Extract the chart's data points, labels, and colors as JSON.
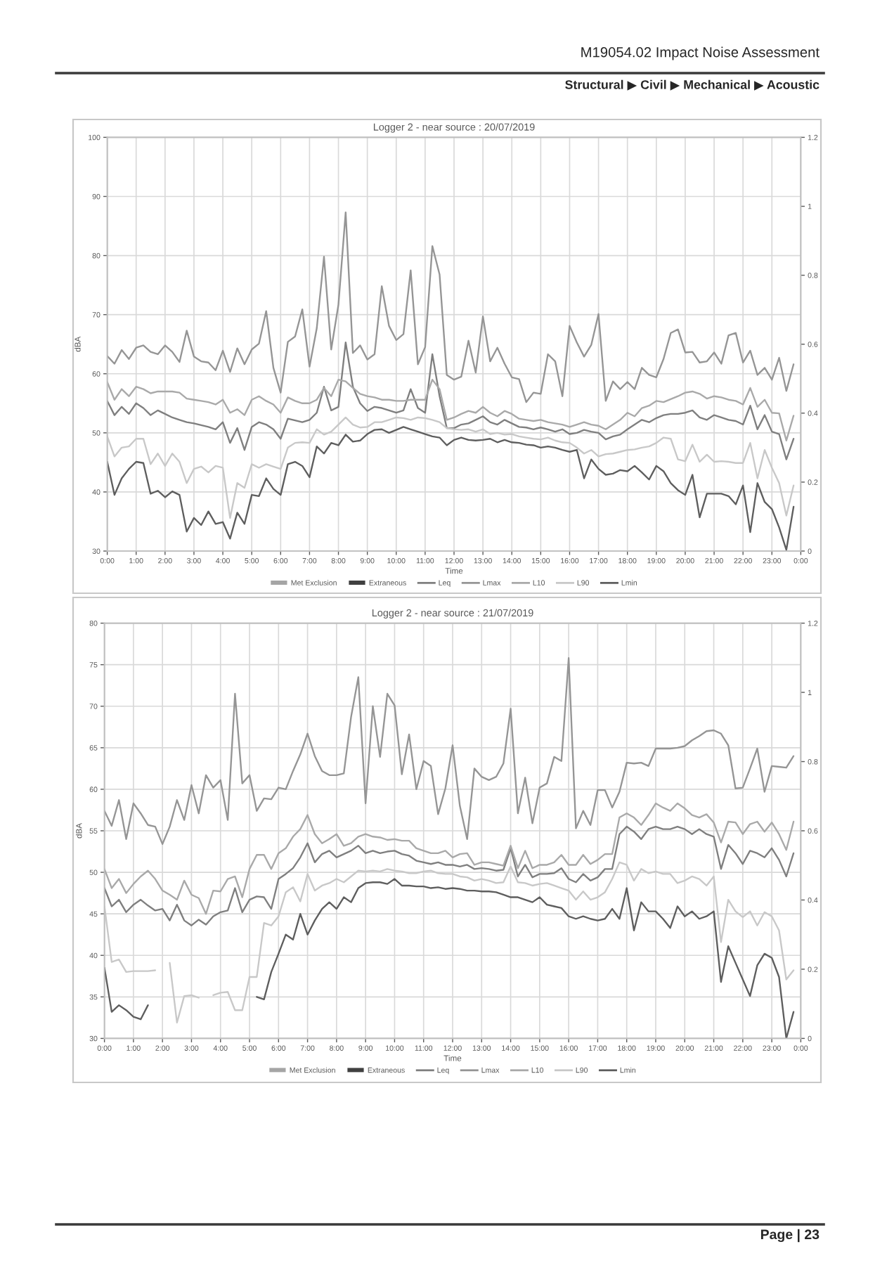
{
  "chart_data": [
    {
      "type": "line",
      "title": "Logger 2 - near source : 20/07/2019",
      "xlabel": "Time",
      "ylabel": "dBA",
      "legend": "bottom",
      "grid": true,
      "x": [
        0,
        0.25,
        0.5,
        0.75,
        1,
        1.25,
        1.5,
        1.75,
        2,
        2.25,
        2.5,
        2.75,
        3,
        3.25,
        3.5,
        3.75,
        4,
        4.25,
        4.5,
        4.75,
        5,
        5.25,
        5.5,
        5.75,
        6,
        6.25,
        6.5,
        6.75,
        7,
        7.25,
        7.5,
        7.75,
        8,
        8.25,
        8.5,
        8.75,
        9,
        9.25,
        9.5,
        9.75,
        10,
        10.25,
        10.5,
        10.75,
        11,
        11.25,
        11.5,
        11.75,
        12,
        12.25,
        12.5,
        12.75,
        13,
        13.25,
        13.5,
        13.75,
        14,
        14.25,
        14.5,
        14.75,
        15,
        15.25,
        15.5,
        15.75,
        16,
        16.25,
        16.5,
        16.75,
        17,
        17.25,
        17.5,
        17.75,
        18,
        18.25,
        18.5,
        18.75,
        19,
        19.25,
        19.5,
        19.75,
        20,
        20.25,
        20.5,
        20.75,
        21,
        21.25,
        21.5,
        21.75,
        22,
        22.25,
        22.5,
        22.75,
        23,
        23.25,
        23.5,
        23.75
      ],
      "xlim": [
        0,
        24
      ],
      "xticks": [
        {
          "value": 0,
          "label": "0:00"
        },
        {
          "value": 1,
          "label": "1:00"
        },
        {
          "value": 2,
          "label": "2:00"
        },
        {
          "value": 3,
          "label": "3:00"
        },
        {
          "value": 4,
          "label": "4:00"
        },
        {
          "value": 5,
          "label": "5:00"
        },
        {
          "value": 6,
          "label": "6:00"
        },
        {
          "value": 7,
          "label": "7:00"
        },
        {
          "value": 8,
          "label": "8:00"
        },
        {
          "value": 9,
          "label": "9:00"
        },
        {
          "value": 10,
          "label": "10:00"
        },
        {
          "value": 11,
          "label": "11:00"
        },
        {
          "value": 12,
          "label": "12:00"
        },
        {
          "value": 13,
          "label": "13:00"
        },
        {
          "value": 14,
          "label": "14:00"
        },
        {
          "value": 15,
          "label": "15:00"
        },
        {
          "value": 16,
          "label": "16:00"
        },
        {
          "value": 17,
          "label": "17:00"
        },
        {
          "value": 18,
          "label": "18:00"
        },
        {
          "value": 19,
          "label": "19:00"
        },
        {
          "value": 20,
          "label": "20:00"
        },
        {
          "value": 21,
          "label": "21:00"
        },
        {
          "value": 22,
          "label": "22:00"
        },
        {
          "value": 23,
          "label": "23:00"
        },
        {
          "value": 24,
          "label": "0:00"
        }
      ],
      "ylim": [
        30,
        100
      ],
      "yticks": [
        30,
        40,
        50,
        60,
        70,
        80,
        90,
        100
      ],
      "y2lim": [
        0,
        1.2
      ],
      "y2ticks": [
        0,
        0.2,
        0.4,
        0.6,
        0.8,
        1,
        1.2
      ],
      "series": [
        {
          "name": "Met Exclusion",
          "type": "bar",
          "color": "#a5a5a5",
          "values": [
            null,
            null,
            null,
            null,
            null,
            null,
            null,
            null,
            null,
            null,
            null,
            null,
            null,
            null,
            null,
            null,
            null,
            null,
            null,
            null,
            null,
            null,
            null,
            null,
            null,
            null,
            null,
            null,
            null,
            null,
            null,
            null,
            null,
            null,
            null,
            null,
            null,
            null,
            null,
            null,
            null,
            null,
            null,
            null,
            null,
            null,
            null,
            null,
            null,
            null,
            null,
            null,
            null,
            null,
            null,
            null,
            null,
            null,
            null,
            null,
            null,
            null,
            null,
            null,
            null,
            null,
            null,
            null,
            null,
            null,
            null,
            null,
            null,
            null,
            null,
            null,
            null,
            null,
            null,
            null,
            null,
            null,
            null,
            null,
            null,
            null,
            null,
            null,
            null,
            null,
            null,
            null,
            null,
            null,
            null,
            null
          ]
        },
        {
          "name": "Extraneous",
          "type": "bar",
          "color": "#404040",
          "values": [
            null,
            null,
            null,
            null,
            null,
            null,
            null,
            null,
            null,
            null,
            null,
            null,
            null,
            null,
            null,
            null,
            null,
            null,
            null,
            null,
            null,
            null,
            null,
            null,
            null,
            null,
            null,
            null,
            null,
            null,
            null,
            null,
            null,
            null,
            null,
            null,
            null,
            null,
            null,
            null,
            null,
            null,
            null,
            null,
            null,
            null,
            null,
            null,
            null,
            null,
            null,
            null,
            null,
            null,
            null,
            null,
            null,
            null,
            null,
            null,
            null,
            null,
            null,
            null,
            null,
            null,
            null,
            null,
            null,
            null,
            null,
            null,
            null,
            null,
            null,
            null,
            null,
            null,
            null,
            null,
            null,
            null,
            null,
            null,
            null,
            null,
            null,
            null,
            null,
            null,
            null,
            null,
            null,
            null,
            null,
            null
          ]
        },
        {
          "name": "Leq",
          "color": "#7f7f7f",
          "values": [
            55.4,
            53.0,
            54.4,
            53.2,
            55.0,
            54.2,
            53.0,
            53.8,
            53.2,
            52.6,
            52.2,
            51.8,
            51.6,
            51.3,
            51.0,
            50.6,
            51.8,
            48.3,
            50.8,
            47.1,
            51.0,
            51.8,
            51.4,
            50.6,
            49.0,
            52.4,
            52.1,
            51.8,
            52.2,
            53.4,
            57.8,
            53.8,
            54.4,
            65.3,
            57.8,
            55.0,
            53.7,
            54.4,
            54.2,
            53.8,
            53.4,
            53.8,
            57.4,
            54.2,
            53.4,
            63.3,
            56.2,
            50.8,
            50.8,
            51.4,
            51.6,
            52.2,
            52.8,
            51.8,
            51.4,
            52.2,
            51.6,
            51.0,
            50.9,
            50.6,
            50.9,
            50.6,
            50.2,
            50.6,
            49.8,
            50.0,
            50.5,
            50.2,
            50.0,
            48.9,
            49.4,
            49.7,
            50.6,
            51.4,
            52.2,
            51.8,
            52.5,
            53.0,
            53.2,
            53.2,
            53.4,
            53.8,
            52.6,
            52.2,
            53.0,
            52.6,
            52.2,
            52.0,
            51.4,
            54.6,
            50.6,
            53.0,
            50.2,
            49.8,
            45.5,
            49.0
          ]
        },
        {
          "name": "Lmax",
          "color": "#959595",
          "values": [
            63.0,
            61.7,
            64.0,
            62.5,
            64.4,
            64.8,
            63.7,
            63.3,
            64.8,
            63.7,
            62.0,
            67.3,
            62.9,
            62.1,
            61.9,
            60.6,
            63.9,
            60.3,
            64.3,
            61.6,
            64.1,
            65.1,
            70.6,
            61.0,
            56.8,
            65.4,
            66.3,
            70.9,
            61.2,
            67.7,
            79.8,
            64.1,
            71.7,
            87.3,
            63.5,
            64.8,
            62.4,
            63.3,
            74.8,
            68.1,
            65.7,
            66.7,
            77.5,
            61.6,
            64.5,
            81.6,
            76.8,
            59.8,
            59.0,
            59.5,
            65.6,
            60.2,
            69.7,
            62.1,
            64.4,
            61.7,
            59.4,
            59.1,
            55.2,
            56.8,
            56.6,
            63.3,
            62.1,
            56.2,
            68.1,
            65.3,
            62.9,
            64.9,
            70.1,
            55.4,
            58.7,
            57.4,
            58.6,
            57.4,
            61.0,
            59.8,
            59.4,
            62.5,
            66.9,
            67.5,
            63.6,
            63.7,
            61.9,
            62.1,
            63.6,
            61.7,
            66.5,
            66.9,
            61.9,
            63.9,
            59.8,
            61.0,
            59.0,
            62.7,
            57.1,
            61.6
          ]
        },
        {
          "name": "L10",
          "color": "#a9a9a9",
          "values": [
            58.6,
            55.6,
            57.4,
            56.2,
            57.8,
            57.4,
            56.7,
            57.0,
            57.0,
            57.0,
            56.8,
            55.8,
            55.6,
            55.4,
            55.2,
            54.8,
            55.6,
            53.4,
            54.0,
            53.0,
            55.6,
            56.2,
            55.4,
            54.8,
            53.4,
            56.0,
            55.4,
            55.0,
            55.0,
            55.6,
            57.6,
            56.2,
            59.0,
            58.7,
            57.6,
            56.6,
            56.2,
            56.0,
            55.6,
            55.6,
            55.4,
            55.4,
            55.6,
            55.6,
            55.6,
            59.0,
            57.4,
            52.2,
            52.6,
            53.2,
            53.7,
            53.4,
            54.4,
            53.4,
            52.8,
            53.7,
            53.2,
            52.4,
            52.2,
            52.0,
            52.2,
            51.8,
            51.6,
            51.4,
            51.0,
            51.4,
            51.8,
            51.4,
            51.2,
            50.6,
            51.4,
            52.2,
            53.4,
            52.8,
            54.2,
            54.6,
            55.4,
            55.2,
            55.7,
            56.2,
            56.8,
            57.0,
            56.6,
            55.8,
            56.2,
            56.0,
            55.6,
            55.4,
            54.8,
            57.6,
            54.4,
            55.6,
            53.4,
            53.3,
            48.7,
            52.9
          ]
        },
        {
          "name": "L90",
          "color": "#c8c8c8",
          "values": [
            49.4,
            46.0,
            47.5,
            47.7,
            49.0,
            49.0,
            44.7,
            46.5,
            44.4,
            46.5,
            45.1,
            41.5,
            43.9,
            44.3,
            43.3,
            44.4,
            44.1,
            35.6,
            41.5,
            40.7,
            44.7,
            44.1,
            44.7,
            44.3,
            43.9,
            47.5,
            48.3,
            48.4,
            48.3,
            50.6,
            49.7,
            50.2,
            51.4,
            52.6,
            51.4,
            50.9,
            51.0,
            51.8,
            51.8,
            52.2,
            52.6,
            52.5,
            52.2,
            52.6,
            52.5,
            52.2,
            51.8,
            50.8,
            50.6,
            50.5,
            50.6,
            50.2,
            50.6,
            49.8,
            50.0,
            49.7,
            49.8,
            49.4,
            49.2,
            49.0,
            48.9,
            49.2,
            48.7,
            48.4,
            48.3,
            47.5,
            46.5,
            47.1,
            46.0,
            46.4,
            46.5,
            46.8,
            47.1,
            47.2,
            47.5,
            47.7,
            48.3,
            49.2,
            49.0,
            45.5,
            45.2,
            48.0,
            45.1,
            46.3,
            45.1,
            45.2,
            45.1,
            44.9,
            44.9,
            48.3,
            42.3,
            47.1,
            44.1,
            41.5,
            36.0,
            41.1
          ]
        },
        {
          "name": "Lmin",
          "color": "#5e5e5e",
          "values": [
            45.1,
            39.5,
            42.3,
            43.9,
            45.1,
            44.9,
            39.7,
            40.2,
            39.1,
            40.1,
            39.5,
            33.3,
            35.6,
            34.4,
            36.7,
            34.6,
            34.9,
            32.1,
            36.5,
            34.6,
            39.5,
            39.3,
            42.3,
            40.5,
            39.5,
            44.7,
            45.1,
            44.4,
            42.5,
            47.7,
            46.5,
            48.3,
            47.9,
            49.7,
            48.5,
            48.7,
            49.8,
            50.5,
            50.6,
            50.0,
            50.5,
            51.0,
            50.6,
            50.2,
            49.8,
            49.4,
            49.2,
            47.9,
            48.8,
            49.2,
            48.8,
            48.7,
            48.8,
            49.0,
            48.4,
            48.8,
            48.4,
            48.3,
            48.0,
            47.9,
            47.5,
            47.7,
            47.5,
            47.1,
            46.8,
            47.1,
            42.3,
            45.5,
            43.9,
            42.9,
            43.1,
            43.7,
            43.5,
            44.4,
            43.3,
            42.1,
            44.4,
            43.5,
            41.5,
            40.3,
            39.5,
            42.9,
            35.7,
            39.7,
            39.7,
            39.7,
            39.3,
            37.9,
            41.1,
            33.2,
            41.5,
            38.3,
            37.1,
            34.0,
            30.2,
            37.5
          ]
        }
      ],
      "annotations": [
        "M19054.02 Impact Noise Assessment",
        "Structural ▶ Civil ▶ Mechanical ▶ Acoustic"
      ]
    },
    {
      "type": "line",
      "title": "Logger 2 - near source : 21/07/2019",
      "xlabel": "Time",
      "ylabel": "dBA",
      "legend": "bottom",
      "grid": true,
      "x": [
        0,
        0.25,
        0.5,
        0.75,
        1,
        1.25,
        1.5,
        1.75,
        2,
        2.25,
        2.5,
        2.75,
        3,
        3.25,
        3.5,
        3.75,
        4,
        4.25,
        4.5,
        4.75,
        5,
        5.25,
        5.5,
        5.75,
        6,
        6.25,
        6.5,
        6.75,
        7,
        7.25,
        7.5,
        7.75,
        8,
        8.25,
        8.5,
        8.75,
        9,
        9.25,
        9.5,
        9.75,
        10,
        10.25,
        10.5,
        10.75,
        11,
        11.25,
        11.5,
        11.75,
        12,
        12.25,
        12.5,
        12.75,
        13,
        13.25,
        13.5,
        13.75,
        14,
        14.25,
        14.5,
        14.75,
        15,
        15.25,
        15.5,
        15.75,
        16,
        16.25,
        16.5,
        16.75,
        17,
        17.25,
        17.5,
        17.75,
        18,
        18.25,
        18.5,
        18.75,
        19,
        19.25,
        19.5,
        19.75,
        20,
        20.25,
        20.5,
        20.75,
        21,
        21.25,
        21.5,
        21.75,
        22,
        22.25,
        22.5,
        22.75,
        23,
        23.25,
        23.5,
        23.75
      ],
      "xlim": [
        0,
        24
      ],
      "xticks": [
        {
          "value": 0,
          "label": "0:00"
        },
        {
          "value": 1,
          "label": "1:00"
        },
        {
          "value": 2,
          "label": "2:00"
        },
        {
          "value": 3,
          "label": "3:00"
        },
        {
          "value": 4,
          "label": "4:00"
        },
        {
          "value": 5,
          "label": "5:00"
        },
        {
          "value": 6,
          "label": "6:00"
        },
        {
          "value": 7,
          "label": "7:00"
        },
        {
          "value": 8,
          "label": "8:00"
        },
        {
          "value": 9,
          "label": "9:00"
        },
        {
          "value": 10,
          "label": "10:00"
        },
        {
          "value": 11,
          "label": "11:00"
        },
        {
          "value": 12,
          "label": "12:00"
        },
        {
          "value": 13,
          "label": "13:00"
        },
        {
          "value": 14,
          "label": "14:00"
        },
        {
          "value": 15,
          "label": "15:00"
        },
        {
          "value": 16,
          "label": "16:00"
        },
        {
          "value": 17,
          "label": "17:00"
        },
        {
          "value": 18,
          "label": "18:00"
        },
        {
          "value": 19,
          "label": "19:00"
        },
        {
          "value": 20,
          "label": "20:00"
        },
        {
          "value": 21,
          "label": "21:00"
        },
        {
          "value": 22,
          "label": "22:00"
        },
        {
          "value": 23,
          "label": "23:00"
        },
        {
          "value": 24,
          "label": "0:00"
        }
      ],
      "ylim": [
        30,
        80
      ],
      "yticks": [
        30,
        35,
        40,
        45,
        50,
        55,
        60,
        65,
        70,
        75,
        80
      ],
      "y2lim": [
        0,
        1.2
      ],
      "y2ticks": [
        0,
        0.2,
        0.4,
        0.6,
        0.8,
        1,
        1.2
      ],
      "series": [
        {
          "name": "Met Exclusion",
          "type": "bar",
          "color": "#a5a5a5",
          "values": [
            null,
            null,
            null,
            null,
            null,
            null,
            null,
            null,
            null,
            null,
            null,
            null,
            null,
            null,
            null,
            null,
            null,
            null,
            null,
            null,
            null,
            null,
            null,
            null,
            null,
            null,
            null,
            null,
            null,
            null,
            null,
            null,
            null,
            null,
            null,
            null,
            null,
            null,
            null,
            null,
            null,
            null,
            null,
            null,
            null,
            null,
            null,
            null,
            null,
            null,
            null,
            null,
            null,
            null,
            null,
            null,
            null,
            null,
            null,
            null,
            null,
            null,
            null,
            null,
            null,
            null,
            null,
            null,
            null,
            null,
            null,
            null,
            null,
            null,
            null,
            null,
            null,
            null,
            null,
            null,
            null,
            null,
            null,
            null,
            null,
            null,
            null,
            null,
            null,
            null,
            null,
            null,
            null,
            null,
            null,
            null
          ]
        },
        {
          "name": "Extraneous",
          "type": "bar",
          "color": "#404040",
          "values": [
            null,
            null,
            null,
            null,
            null,
            null,
            null,
            null,
            null,
            null,
            null,
            null,
            null,
            null,
            null,
            null,
            null,
            null,
            null,
            null,
            null,
            null,
            null,
            null,
            null,
            null,
            null,
            null,
            null,
            null,
            null,
            null,
            null,
            null,
            null,
            null,
            null,
            null,
            null,
            null,
            null,
            null,
            null,
            null,
            null,
            null,
            null,
            null,
            null,
            null,
            null,
            null,
            null,
            null,
            null,
            null,
            null,
            null,
            null,
            null,
            null,
            null,
            null,
            null,
            null,
            null,
            null,
            null,
            null,
            null,
            null,
            null,
            null,
            null,
            null,
            null,
            null,
            null,
            null,
            null,
            null,
            null,
            null,
            null,
            null,
            null,
            null,
            null,
            null,
            null,
            null,
            null,
            null,
            null,
            null,
            null
          ]
        },
        {
          "name": "Leq",
          "color": "#7f7f7f",
          "values": [
            48.1,
            45.9,
            46.7,
            45.2,
            46.1,
            46.7,
            46.0,
            45.4,
            45.6,
            44.2,
            46.1,
            44.2,
            43.6,
            44.3,
            43.7,
            44.7,
            45.2,
            45.4,
            48.1,
            45.2,
            46.7,
            47.1,
            47.0,
            45.6,
            49.2,
            49.8,
            50.5,
            51.8,
            53.5,
            51.2,
            52.2,
            52.6,
            51.8,
            52.2,
            52.6,
            53.2,
            52.3,
            52.6,
            52.3,
            52.5,
            52.6,
            52.2,
            52.0,
            51.4,
            51.2,
            51.0,
            51.2,
            50.9,
            50.9,
            50.7,
            50.9,
            50.4,
            50.5,
            50.4,
            50.2,
            50.3,
            52.9,
            49.5,
            50.9,
            49.4,
            49.8,
            49.8,
            49.9,
            50.5,
            49.2,
            48.8,
            49.8,
            49.0,
            49.4,
            50.4,
            50.4,
            54.6,
            55.5,
            54.9,
            54.0,
            55.2,
            55.5,
            55.2,
            55.2,
            55.5,
            55.2,
            54.6,
            55.2,
            54.6,
            54.3,
            50.4,
            53.3,
            52.3,
            51.0,
            52.6,
            52.3,
            51.8,
            52.9,
            51.5,
            49.5,
            52.3
          ]
        },
        {
          "name": "Lmax",
          "color": "#959595",
          "values": [
            57.4,
            55.6,
            58.7,
            54.0,
            58.3,
            57.1,
            55.7,
            55.5,
            53.4,
            55.5,
            58.7,
            56.3,
            60.5,
            57.1,
            61.7,
            60.2,
            61.1,
            56.3,
            71.5,
            60.7,
            61.7,
            57.4,
            58.9,
            58.8,
            60.2,
            60.0,
            62.2,
            64.2,
            66.7,
            64.0,
            62.2,
            61.7,
            61.7,
            61.9,
            68.7,
            73.5,
            58.3,
            70.0,
            63.9,
            71.5,
            70.1,
            61.8,
            66.6,
            60.0,
            63.4,
            62.8,
            57.0,
            60.1,
            65.3,
            58.0,
            54.0,
            62.5,
            61.5,
            61.1,
            61.5,
            63.1,
            69.7,
            57.1,
            61.4,
            55.9,
            60.2,
            60.7,
            63.9,
            63.4,
            75.8,
            55.3,
            57.4,
            55.7,
            59.9,
            59.9,
            57.8,
            59.7,
            63.2,
            63.1,
            63.2,
            62.8,
            64.9,
            64.9,
            64.9,
            65.0,
            65.2,
            65.9,
            66.4,
            67.0,
            67.1,
            66.7,
            65.3,
            60.1,
            60.2,
            62.5,
            64.9,
            59.7,
            62.8,
            62.7,
            62.6,
            64.0
          ]
        },
        {
          "name": "L10",
          "color": "#a9a9a9",
          "values": [
            50.4,
            48.1,
            49.2,
            47.5,
            48.6,
            49.5,
            50.2,
            49.2,
            47.8,
            47.3,
            46.7,
            49.0,
            47.3,
            46.9,
            45.0,
            47.8,
            47.7,
            49.2,
            49.5,
            47.0,
            50.4,
            52.1,
            52.1,
            50.4,
            52.3,
            52.9,
            54.3,
            55.2,
            56.9,
            54.6,
            53.5,
            54.0,
            54.6,
            53.2,
            53.5,
            54.3,
            54.6,
            54.3,
            54.2,
            53.9,
            54.0,
            53.8,
            53.8,
            52.9,
            52.6,
            52.3,
            52.3,
            52.6,
            51.8,
            52.2,
            52.3,
            50.9,
            51.2,
            51.2,
            51.0,
            50.8,
            53.2,
            50.5,
            52.6,
            50.5,
            50.9,
            50.9,
            51.2,
            52.1,
            50.9,
            50.9,
            52.1,
            51.0,
            51.5,
            52.2,
            52.2,
            56.6,
            57.1,
            56.6,
            55.7,
            56.9,
            58.3,
            57.8,
            57.4,
            58.3,
            57.7,
            56.9,
            56.6,
            57.0,
            56.0,
            53.6,
            56.1,
            56.0,
            54.6,
            55.8,
            56.1,
            54.9,
            56.0,
            54.6,
            52.7,
            56.1
          ]
        },
        {
          "name": "L90",
          "color": "#c8c8c8",
          "values": [
            45.9,
            39.2,
            39.5,
            38.0,
            38.1,
            38.1,
            38.1,
            38.2,
            null,
            39.1,
            31.9,
            35.1,
            35.2,
            34.9,
            null,
            35.2,
            35.5,
            35.6,
            33.4,
            33.4,
            37.4,
            37.4,
            43.9,
            43.6,
            44.7,
            47.6,
            48.2,
            46.5,
            49.8,
            47.8,
            48.4,
            48.7,
            49.2,
            48.8,
            49.5,
            50.2,
            50.1,
            50.2,
            50.1,
            50.4,
            50.2,
            50.1,
            49.9,
            49.9,
            50.1,
            50.2,
            49.9,
            49.8,
            49.8,
            49.5,
            49.4,
            49.0,
            49.2,
            49.0,
            48.7,
            48.8,
            50.7,
            48.8,
            48.7,
            48.4,
            48.6,
            48.7,
            48.4,
            48.1,
            47.8,
            46.7,
            47.7,
            46.7,
            47.0,
            47.6,
            49.2,
            51.2,
            50.9,
            49.0,
            50.4,
            49.9,
            50.1,
            49.8,
            49.8,
            48.7,
            49.0,
            49.5,
            49.2,
            48.4,
            49.5,
            41.6,
            46.7,
            45.3,
            44.6,
            45.3,
            43.6,
            45.2,
            44.7,
            43.0,
            37.1,
            38.2
          ]
        },
        {
          "name": "Lmin",
          "color": "#5e5e5e",
          "values": [
            38.5,
            33.2,
            34.0,
            33.4,
            32.6,
            32.3,
            34.0,
            null,
            null,
            null,
            null,
            null,
            null,
            null,
            null,
            null,
            null,
            null,
            null,
            null,
            null,
            35.0,
            34.7,
            38.0,
            40.2,
            42.5,
            41.9,
            45.0,
            42.5,
            44.2,
            45.6,
            46.4,
            45.6,
            47.0,
            46.4,
            48.1,
            48.7,
            48.8,
            48.8,
            48.6,
            49.2,
            48.4,
            48.4,
            48.3,
            48.3,
            48.1,
            48.2,
            48.0,
            48.1,
            48.0,
            47.8,
            47.8,
            47.7,
            47.7,
            47.6,
            47.3,
            47.0,
            47.0,
            46.7,
            46.4,
            47.0,
            46.1,
            45.9,
            45.7,
            44.7,
            44.4,
            44.7,
            44.4,
            44.2,
            44.4,
            45.6,
            44.4,
            48.1,
            43.0,
            46.4,
            45.3,
            45.3,
            44.4,
            43.3,
            45.9,
            44.7,
            45.3,
            44.4,
            44.7,
            45.3,
            36.8,
            41.1,
            39.1,
            37.1,
            35.1,
            38.8,
            40.2,
            39.7,
            37.4,
            30.0,
            33.2
          ]
        }
      ],
      "annotations": [
        "Page | 23"
      ]
    }
  ]
}
